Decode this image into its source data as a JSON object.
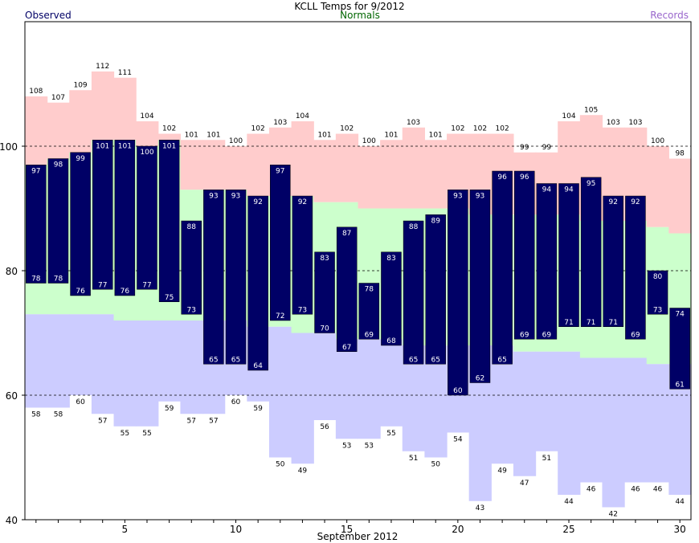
{
  "chart_data": {
    "type": "bar",
    "title": "KCLL Temps for 9/2012",
    "xlabel": "September 2012",
    "legend": {
      "observed": "Observed",
      "normals": "Normals",
      "records": "Records"
    },
    "colors": {
      "observed": "#000066",
      "normals_label": "#006600",
      "records_label": "#9966cc",
      "record_high_fill": "#ffcccc",
      "normal_fill": "#ccffcc",
      "record_low_fill": "#ccccff",
      "observed_text": "#ffffff"
    },
    "ylim": [
      40,
      120
    ],
    "yticks": [
      40,
      60,
      80,
      100
    ],
    "xticks": [
      5,
      10,
      15,
      20,
      25,
      30
    ],
    "grid_dashed_at": [
      60,
      80,
      100
    ],
    "days": [
      1,
      2,
      3,
      4,
      5,
      6,
      7,
      8,
      9,
      10,
      11,
      12,
      13,
      14,
      15,
      16,
      17,
      18,
      19,
      20,
      21,
      22,
      23,
      24,
      25,
      26,
      27,
      28,
      29,
      30
    ],
    "series": [
      {
        "name": "Observed high",
        "values": [
          97,
          98,
          99,
          101,
          101,
          100,
          101,
          88,
          93,
          93,
          92,
          97,
          92,
          83,
          87,
          78,
          83,
          88,
          89,
          93,
          93,
          96,
          96,
          94,
          94,
          95,
          92,
          92,
          80,
          74
        ]
      },
      {
        "name": "Observed low",
        "values": [
          78,
          78,
          76,
          77,
          76,
          77,
          75,
          73,
          65,
          65,
          64,
          72,
          73,
          70,
          67,
          69,
          68,
          65,
          65,
          60,
          62,
          65,
          69,
          69,
          71,
          71,
          71,
          69,
          73,
          61
        ]
      },
      {
        "name": "Record high",
        "values": [
          108,
          107,
          109,
          112,
          111,
          104,
          102,
          101,
          101,
          100,
          102,
          103,
          104,
          101,
          102,
          100,
          101,
          103,
          101,
          102,
          102,
          102,
          99,
          99,
          104,
          105,
          103,
          103,
          100,
          98
        ]
      },
      {
        "name": "Record low",
        "values": [
          58,
          58,
          60,
          57,
          55,
          55,
          59,
          57,
          57,
          60,
          59,
          50,
          49,
          56,
          53,
          53,
          55,
          51,
          50,
          54,
          43,
          49,
          47,
          51,
          44,
          46,
          42,
          46,
          46,
          44
        ]
      },
      {
        "name": "Normal high",
        "values": [
          null,
          null,
          null,
          null,
          null,
          null,
          null,
          93,
          93,
          93,
          92,
          92,
          92,
          91,
          91,
          90,
          90,
          90,
          90,
          90,
          89,
          89,
          89,
          89,
          89,
          88,
          88,
          88,
          87,
          86
        ]
      },
      {
        "name": "Normal low",
        "values": [
          73,
          73,
          73,
          73,
          72,
          72,
          72,
          72,
          72,
          72,
          71,
          71,
          70,
          70,
          69,
          69,
          69,
          68,
          68,
          68,
          68,
          68,
          67,
          67,
          67,
          66,
          66,
          66,
          65,
          65
        ]
      }
    ]
  }
}
